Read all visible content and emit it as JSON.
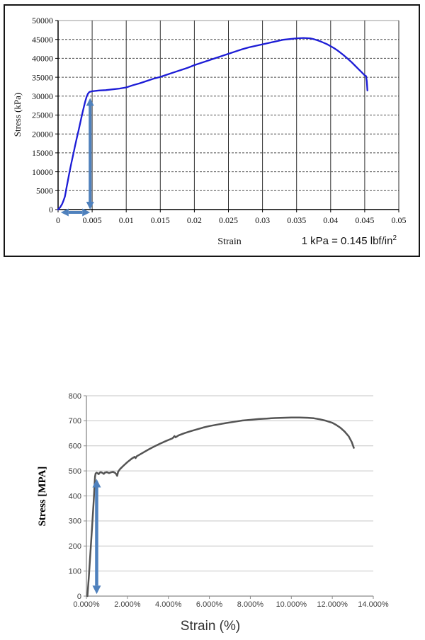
{
  "page": {
    "background": "#ffffff"
  },
  "chart_data": [
    {
      "id": "top-stress-strain-kpa",
      "type": "line",
      "title": "",
      "xlabel": "Strain",
      "ylabel": "Stress (kPa)",
      "note_text": "1 kPa = 0.145 lbf/in",
      "note_sup": "2",
      "xlim": [
        0,
        0.05
      ],
      "ylim": [
        0,
        50000
      ],
      "x_ticks": [
        0,
        0.005,
        0.01,
        0.015,
        0.02,
        0.025,
        0.03,
        0.035,
        0.04,
        0.045,
        0.05
      ],
      "x_tick_labels": [
        "0",
        "0.005",
        "0.01",
        "0.015",
        "0.02",
        "0.025",
        "0.03",
        "0.035",
        "0.04",
        "0.045",
        "0.05"
      ],
      "y_ticks": [
        0,
        5000,
        10000,
        15000,
        20000,
        25000,
        30000,
        35000,
        40000,
        45000,
        50000
      ],
      "y_tick_labels": [
        "0",
        "5000",
        "10000",
        "15000",
        "20000",
        "25000",
        "30000",
        "35000",
        "40000",
        "45000",
        "50000"
      ],
      "grid": {
        "vertical": true,
        "horizontal": true
      },
      "legend": "none",
      "line_color": "#1c1cd6",
      "annotation_color": "#4f81bd",
      "series": [
        {
          "name": "stress-strain-curve-kpa",
          "points": [
            [
              0,
              0
            ],
            [
              0.0003,
              600
            ],
            [
              0.0006,
              1500
            ],
            [
              0.0008,
              2400
            ],
            [
              0.001,
              3400
            ],
            [
              0.0011,
              4400
            ],
            [
              0.0012,
              5400
            ],
            [
              0.0014,
              7300
            ],
            [
              0.0016,
              9200
            ],
            [
              0.0018,
              11000
            ],
            [
              0.002,
              12700
            ],
            [
              0.0022,
              14400
            ],
            [
              0.0025,
              16900
            ],
            [
              0.0028,
              19300
            ],
            [
              0.003,
              20900
            ],
            [
              0.0033,
              23300
            ],
            [
              0.0035,
              25000
            ],
            [
              0.0038,
              27300
            ],
            [
              0.004,
              28700
            ],
            [
              0.0042,
              29900
            ],
            [
              0.0044,
              30700
            ],
            [
              0.0046,
              31100
            ],
            [
              0.005,
              31300
            ],
            [
              0.006,
              31500
            ],
            [
              0.007,
              31600
            ],
            [
              0.008,
              31800
            ],
            [
              0.009,
              32000
            ],
            [
              0.01,
              32300
            ],
            [
              0.011,
              32900
            ],
            [
              0.012,
              33400
            ],
            [
              0.013,
              34000
            ],
            [
              0.014,
              34600
            ],
            [
              0.015,
              35100
            ],
            [
              0.016,
              35700
            ],
            [
              0.017,
              36300
            ],
            [
              0.018,
              36900
            ],
            [
              0.019,
              37500
            ],
            [
              0.02,
              38200
            ],
            [
              0.021,
              38800
            ],
            [
              0.022,
              39400
            ],
            [
              0.023,
              40000
            ],
            [
              0.024,
              40600
            ],
            [
              0.025,
              41200
            ],
            [
              0.026,
              41800
            ],
            [
              0.027,
              42400
            ],
            [
              0.028,
              42900
            ],
            [
              0.029,
              43300
            ],
            [
              0.03,
              43700
            ],
            [
              0.031,
              44100
            ],
            [
              0.032,
              44500
            ],
            [
              0.033,
              44900
            ],
            [
              0.034,
              45100
            ],
            [
              0.035,
              45300
            ],
            [
              0.036,
              45400
            ],
            [
              0.037,
              45300
            ],
            [
              0.0375,
              45100
            ],
            [
              0.038,
              44800
            ],
            [
              0.0385,
              44500
            ],
            [
              0.039,
              44100
            ],
            [
              0.0395,
              43700
            ],
            [
              0.04,
              43200
            ],
            [
              0.0405,
              42700
            ],
            [
              0.041,
              42100
            ],
            [
              0.0415,
              41400
            ],
            [
              0.042,
              40700
            ],
            [
              0.0425,
              39900
            ],
            [
              0.043,
              39100
            ],
            [
              0.0435,
              38200
            ],
            [
              0.044,
              37300
            ],
            [
              0.0445,
              36400
            ],
            [
              0.045,
              35500
            ],
            [
              0.0452,
              35300
            ],
            [
              0.0453,
              34000
            ],
            [
              0.0454,
              31500
            ]
          ]
        }
      ],
      "annotations": [
        {
          "type": "double_arrow",
          "dir": "v",
          "x": 0.0047,
          "y_from": 0,
          "y_to": 29500
        },
        {
          "type": "double_arrow",
          "dir": "h",
          "y": 0,
          "x_from": 0.0004,
          "x_to": 0.0047
        }
      ]
    },
    {
      "id": "bottom-stress-strain-mpa",
      "type": "line",
      "title": "",
      "xlabel": "Strain (%)",
      "ylabel": "Stress [MPA]",
      "xlim": [
        0,
        14
      ],
      "ylim": [
        0,
        800
      ],
      "x_ticks": [
        0,
        2,
        4,
        6,
        8,
        10,
        12,
        14
      ],
      "x_tick_labels": [
        "0.000%",
        "2.000%",
        "4.000%",
        "6.000%",
        "8.000%",
        "10.000%",
        "12.000%",
        "14.000%"
      ],
      "y_ticks": [
        0,
        100,
        200,
        300,
        400,
        500,
        600,
        700,
        800
      ],
      "y_tick_labels": [
        "0",
        "100",
        "200",
        "300",
        "400",
        "500",
        "600",
        "700",
        "800"
      ],
      "grid": {
        "vertical": false,
        "horizontal": true
      },
      "legend": "none",
      "line_color": "#545454",
      "annotation_color": "#4f81bd",
      "series": [
        {
          "name": "stress-strain-curve-mpa",
          "points": [
            [
              0.05,
              0
            ],
            [
              0.12,
              80
            ],
            [
              0.2,
              180
            ],
            [
              0.28,
              280
            ],
            [
              0.36,
              385
            ],
            [
              0.4,
              450
            ],
            [
              0.42,
              478
            ],
            [
              0.45,
              490
            ],
            [
              0.5,
              493
            ],
            [
              0.55,
              490
            ],
            [
              0.6,
              487
            ],
            [
              0.65,
              493
            ],
            [
              0.7,
              495
            ],
            [
              0.78,
              492
            ],
            [
              0.85,
              488
            ],
            [
              0.9,
              493
            ],
            [
              1.0,
              495
            ],
            [
              1.1,
              491
            ],
            [
              1.2,
              494
            ],
            [
              1.3,
              496
            ],
            [
              1.4,
              492
            ],
            [
              1.45,
              488
            ],
            [
              1.5,
              480
            ],
            [
              1.55,
              497
            ],
            [
              1.65,
              508
            ],
            [
              1.8,
              520
            ],
            [
              2.0,
              535
            ],
            [
              2.2,
              548
            ],
            [
              2.35,
              556
            ],
            [
              2.4,
              551
            ],
            [
              2.45,
              558
            ],
            [
              2.7,
              570
            ],
            [
              3.0,
              584
            ],
            [
              3.3,
              597
            ],
            [
              3.6,
              609
            ],
            [
              3.9,
              620
            ],
            [
              4.2,
              630
            ],
            [
              4.3,
              639
            ],
            [
              4.35,
              634
            ],
            [
              4.5,
              642
            ],
            [
              4.8,
              651
            ],
            [
              5.1,
              659
            ],
            [
              5.4,
              666
            ],
            [
              5.7,
              673
            ],
            [
              6.0,
              679
            ],
            [
              6.4,
              685
            ],
            [
              6.8,
              691
            ],
            [
              7.2,
              696
            ],
            [
              7.6,
              701
            ],
            [
              8.0,
              704
            ],
            [
              8.4,
              707
            ],
            [
              8.8,
              709
            ],
            [
              9.2,
              711
            ],
            [
              9.6,
              712
            ],
            [
              10.0,
              713
            ],
            [
              10.4,
              713
            ],
            [
              10.8,
              712
            ],
            [
              11.1,
              710
            ],
            [
              11.4,
              706
            ],
            [
              11.7,
              700
            ],
            [
              12.0,
              692
            ],
            [
              12.2,
              683
            ],
            [
              12.4,
              672
            ],
            [
              12.6,
              657
            ],
            [
              12.8,
              638
            ],
            [
              12.95,
              615
            ],
            [
              13.05,
              592
            ]
          ]
        }
      ],
      "annotations": [
        {
          "type": "double_arrow",
          "dir": "v",
          "x": 0.5,
          "y_from": 8,
          "y_to": 468
        }
      ]
    }
  ]
}
